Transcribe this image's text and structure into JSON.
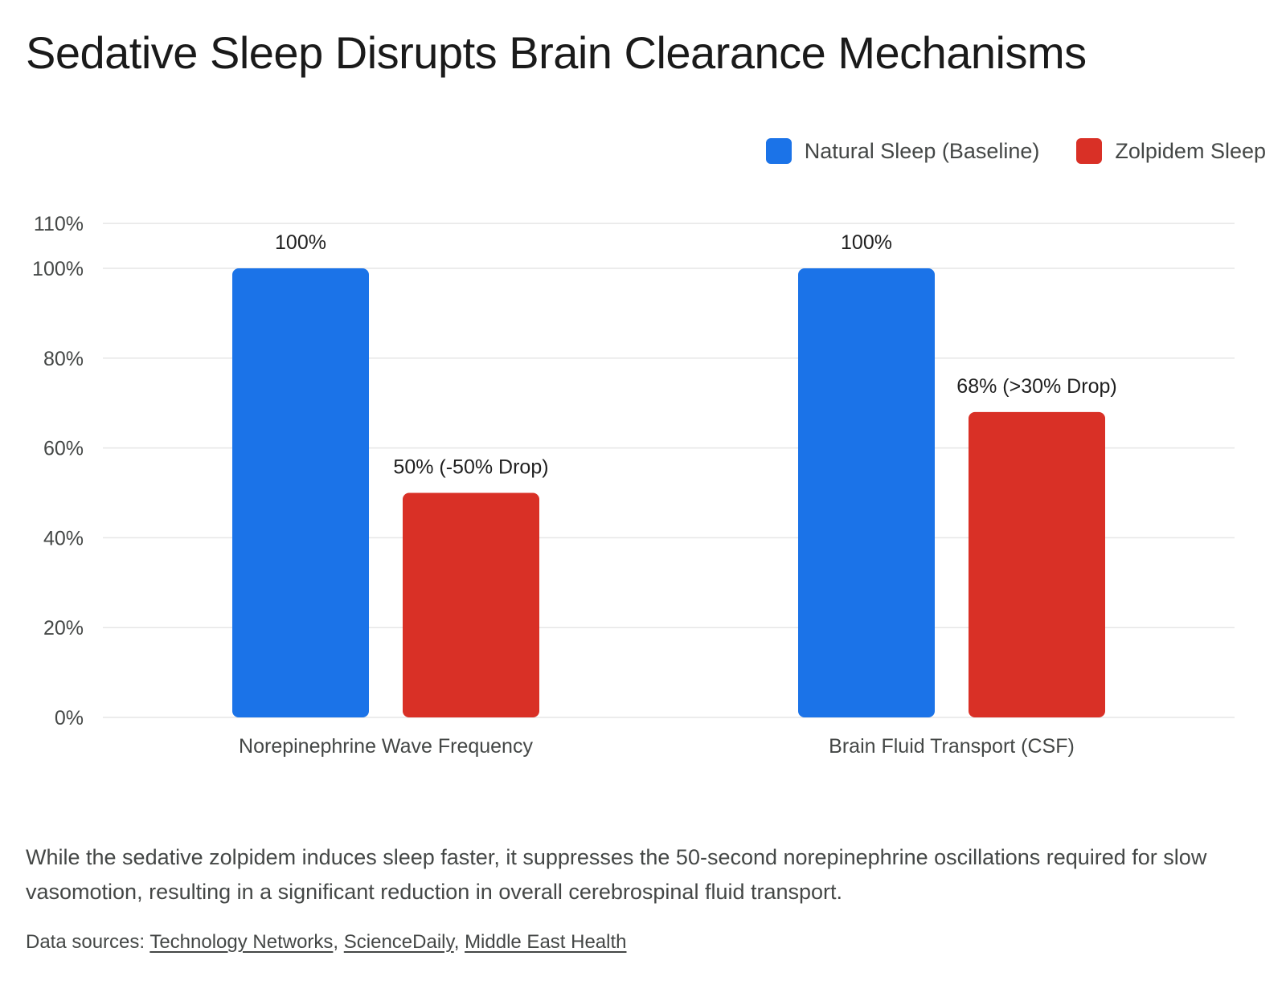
{
  "title": "Sedative Sleep Disrupts Brain Clearance Mechanisms",
  "legend": [
    {
      "label": "Natural Sleep (Baseline)",
      "color": "#1b73e8"
    },
    {
      "label": "Zolpidem Sleep",
      "color": "#d93026"
    }
  ],
  "chart_data": {
    "type": "bar",
    "categories": [
      "Norepinephrine Wave Frequency",
      "Brain Fluid Transport (CSF)"
    ],
    "series": [
      {
        "name": "Natural Sleep (Baseline)",
        "values": [
          100,
          100
        ],
        "labels": [
          "100%",
          "100%"
        ],
        "color": "#1b73e8"
      },
      {
        "name": "Zolpidem Sleep",
        "values": [
          50,
          68
        ],
        "labels": [
          "50% (-50% Drop)",
          "68% (>30% Drop)"
        ],
        "color": "#d93026"
      }
    ],
    "ylim": [
      0,
      110
    ],
    "yticks": [
      0,
      20,
      40,
      60,
      80,
      100,
      110
    ],
    "ytick_labels": [
      "0%",
      "20%",
      "40%",
      "60%",
      "80%",
      "100%",
      "110%"
    ],
    "grid": true,
    "legend_position": "top-right",
    "xlabel": "",
    "ylabel": ""
  },
  "caption": "While the sedative zolpidem induces sleep faster, it suppresses the 50-second norepinephrine oscillations required for slow vasomotion, resulting in a significant reduction in overall cerebrospinal fluid transport.",
  "sources": {
    "prefix": "Data sources: ",
    "links": [
      "Technology Networks",
      "ScienceDaily",
      "Middle East Health"
    ],
    "separator": ", "
  }
}
